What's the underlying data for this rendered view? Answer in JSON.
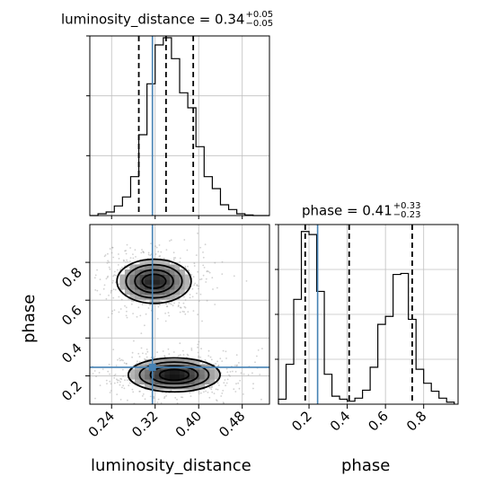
{
  "chart_data": {
    "type": "corner",
    "params": [
      "luminosity_distance",
      "phase"
    ],
    "truths": {
      "luminosity_distance": 0.315,
      "phase": 0.245
    },
    "colors": {
      "truth": "#4682b4",
      "hist": "#000000",
      "grid": "#c0c0c0",
      "quantile": "#000000"
    },
    "grid": true,
    "marginals": [
      {
        "param": "luminosity_distance",
        "title": "luminosity_distance = 0.34",
        "sup": "+0.05",
        "sub": "−0.05",
        "quantiles": [
          0.29,
          0.34,
          0.39
        ],
        "xlim": [
          0.2,
          0.53
        ],
        "ylim": [
          0,
          300
        ],
        "bin_edges": [
          0.2,
          0.215,
          0.23,
          0.245,
          0.26,
          0.275,
          0.29,
          0.305,
          0.32,
          0.335,
          0.35,
          0.365,
          0.38,
          0.395,
          0.41,
          0.425,
          0.44,
          0.455,
          0.47,
          0.485,
          0.5,
          0.515,
          0.53
        ],
        "counts": [
          0,
          3,
          6,
          16,
          31,
          65,
          135,
          220,
          285,
          297,
          262,
          205,
          180,
          115,
          65,
          45,
          18,
          10,
          3,
          1,
          0,
          0
        ]
      },
      {
        "param": "phase",
        "title": "phase = 0.41",
        "sup": "+0.33",
        "sub": "−0.23",
        "quantiles": [
          0.18,
          0.41,
          0.74
        ],
        "xlim": [
          0.04,
          0.98
        ],
        "ylim": [
          0,
          180
        ],
        "bin_edges": [
          0.04,
          0.08,
          0.12,
          0.16,
          0.2,
          0.24,
          0.28,
          0.32,
          0.36,
          0.4,
          0.44,
          0.48,
          0.52,
          0.56,
          0.6,
          0.64,
          0.68,
          0.72,
          0.76,
          0.8,
          0.84,
          0.88,
          0.92,
          0.96
        ],
        "counts": [
          5,
          40,
          105,
          173,
          170,
          113,
          30,
          8,
          5,
          3,
          6,
          14,
          37,
          80,
          88,
          130,
          131,
          85,
          35,
          21,
          13,
          6,
          2
        ]
      }
    ],
    "joint": {
      "x": "luminosity_distance",
      "y": "phase",
      "xlim": [
        0.2,
        0.53
      ],
      "ylim": [
        0.05,
        1.0
      ],
      "modes": [
        {
          "x": 0.318,
          "y": 0.7,
          "sx": 0.038,
          "sy": 0.065,
          "weight": 0.48
        },
        {
          "x": 0.355,
          "y": 0.205,
          "sx": 0.047,
          "sy": 0.05,
          "weight": 0.52
        }
      ]
    },
    "xlabel": "luminosity_distance",
    "xlabel2": "phase",
    "ylabel": "phase",
    "xticks_lum": [
      "0.24",
      "0.32",
      "0.40",
      "0.48"
    ],
    "xticks_phase": [
      "0.2",
      "0.4",
      "0.6",
      "0.8"
    ],
    "yticks_phase": [
      "0.2",
      "0.4",
      "0.6",
      "0.8"
    ]
  }
}
